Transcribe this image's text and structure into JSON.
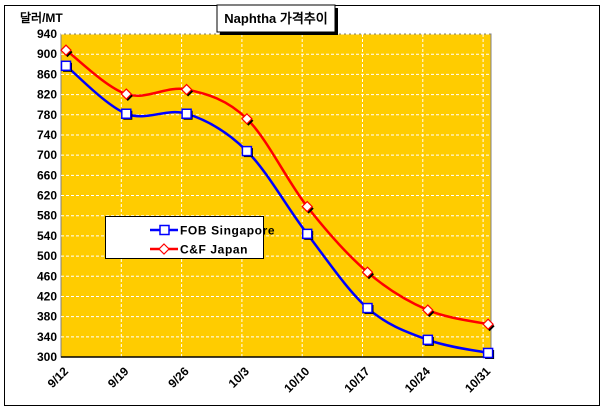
{
  "chart_data": {
    "type": "line",
    "title": "Naphtha 가격추이",
    "ylabel": "달러/MT",
    "xlabel": "",
    "ylim": [
      300,
      940
    ],
    "yticks": [
      300,
      340,
      380,
      420,
      460,
      500,
      540,
      580,
      620,
      660,
      700,
      740,
      780,
      820,
      860,
      900,
      940
    ],
    "categories": [
      "9/12",
      "9/19",
      "9/26",
      "10/3",
      "10/10",
      "10/17",
      "10/24",
      "10/31"
    ],
    "grid": true,
    "legend_position": "center-left",
    "series": [
      {
        "name": "FOB Singapore",
        "color": "#0000FF",
        "marker": "square",
        "values": [
          877,
          782,
          782,
          708,
          544,
          397,
          334,
          308
        ]
      },
      {
        "name": "C&F Japan",
        "color": "#FF0000",
        "marker": "diamond",
        "values": [
          908,
          821,
          830,
          772,
          598,
          468,
          393,
          365
        ]
      }
    ],
    "plot_background": "#FFCC00"
  }
}
